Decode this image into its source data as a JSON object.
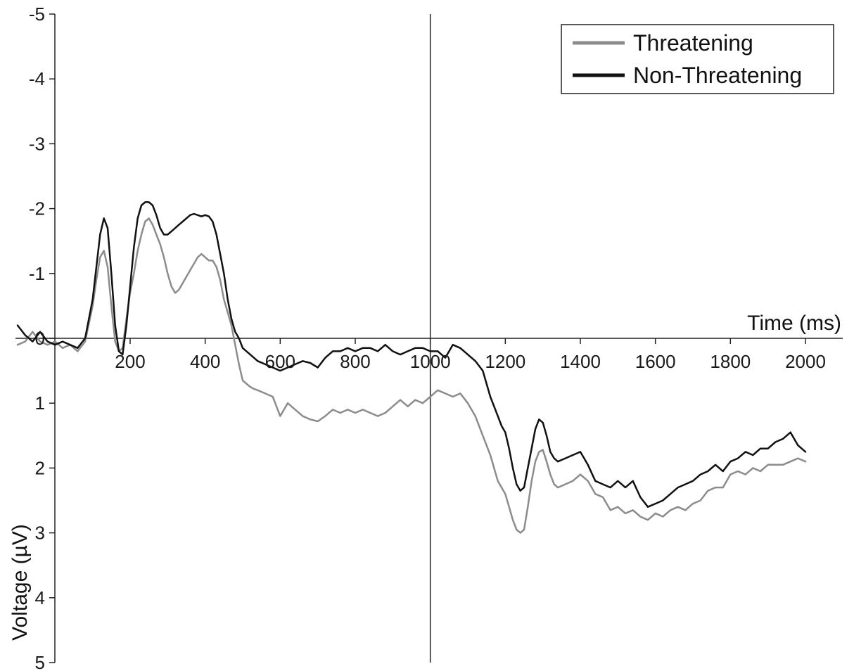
{
  "chart_data": {
    "type": "line",
    "title": "",
    "xlabel": "Time (ms)",
    "ylabel": "Voltage (µV)",
    "xlim": [
      -100,
      2100
    ],
    "ylim": [
      5,
      -5
    ],
    "y_axis_inverted": true,
    "x_ticks": [
      200,
      400,
      600,
      800,
      1000,
      1200,
      1400,
      1600,
      1800,
      2000
    ],
    "y_ticks": [
      -5,
      -4,
      -3,
      -2,
      -1,
      0,
      1,
      2,
      3,
      4,
      5
    ],
    "y_tick_labels": [
      "-5",
      "-4",
      "-3",
      "-2",
      "-1",
      "0",
      "1",
      "2",
      "3",
      "4",
      "5"
    ],
    "x_tick_labels": [
      "200",
      "400",
      "600",
      "800",
      "1000",
      "1200",
      "1400",
      "1600",
      "1800",
      "2000"
    ],
    "reference_line_x": 1000,
    "grid": false,
    "legend_position": "top-right",
    "series": [
      {
        "name": "Threatening",
        "color": "#8c8c8c",
        "x": [
          -100,
          -80,
          -60,
          -40,
          -20,
          0,
          20,
          40,
          60,
          80,
          100,
          110,
          120,
          130,
          140,
          150,
          160,
          170,
          180,
          190,
          200,
          210,
          220,
          230,
          240,
          250,
          260,
          270,
          280,
          290,
          300,
          310,
          320,
          330,
          340,
          350,
          360,
          370,
          380,
          390,
          400,
          410,
          420,
          430,
          440,
          450,
          460,
          470,
          480,
          490,
          500,
          510,
          520,
          530,
          540,
          560,
          580,
          600,
          620,
          640,
          660,
          680,
          700,
          720,
          740,
          760,
          780,
          800,
          820,
          840,
          860,
          880,
          900,
          920,
          940,
          960,
          980,
          1000,
          1020,
          1040,
          1060,
          1080,
          1100,
          1120,
          1140,
          1160,
          1180,
          1190,
          1200,
          1210,
          1220,
          1230,
          1240,
          1250,
          1260,
          1270,
          1280,
          1290,
          1300,
          1310,
          1320,
          1330,
          1340,
          1360,
          1380,
          1400,
          1420,
          1440,
          1460,
          1480,
          1500,
          1520,
          1540,
          1560,
          1580,
          1600,
          1620,
          1640,
          1660,
          1680,
          1700,
          1720,
          1740,
          1760,
          1780,
          1800,
          1820,
          1840,
          1860,
          1880,
          1900,
          1920,
          1940,
          1960,
          1980,
          2000
        ],
        "values": [
          0.1,
          0.05,
          -0.1,
          0.05,
          0.1,
          0.05,
          0.15,
          0.1,
          0.2,
          0.05,
          -0.5,
          -0.9,
          -1.25,
          -1.35,
          -1.1,
          -0.5,
          0.05,
          0.2,
          0.15,
          -0.3,
          -0.7,
          -1.0,
          -1.35,
          -1.6,
          -1.8,
          -1.85,
          -1.75,
          -1.6,
          -1.45,
          -1.25,
          -1.0,
          -0.8,
          -0.7,
          -0.75,
          -0.85,
          -0.95,
          -1.05,
          -1.15,
          -1.25,
          -1.3,
          -1.25,
          -1.2,
          -1.2,
          -1.1,
          -0.9,
          -0.6,
          -0.4,
          -0.2,
          0.1,
          0.4,
          0.65,
          0.7,
          0.75,
          0.78,
          0.8,
          0.85,
          0.9,
          1.2,
          1.0,
          1.1,
          1.2,
          1.25,
          1.28,
          1.2,
          1.1,
          1.15,
          1.1,
          1.15,
          1.1,
          1.15,
          1.2,
          1.15,
          1.05,
          0.95,
          1.05,
          0.95,
          1.0,
          0.9,
          0.8,
          0.85,
          0.9,
          0.85,
          1.0,
          1.2,
          1.5,
          1.8,
          2.2,
          2.3,
          2.4,
          2.6,
          2.8,
          2.95,
          3.0,
          2.95,
          2.6,
          2.2,
          1.9,
          1.75,
          1.72,
          1.9,
          2.1,
          2.25,
          2.3,
          2.25,
          2.2,
          2.1,
          2.2,
          2.4,
          2.45,
          2.65,
          2.6,
          2.7,
          2.65,
          2.75,
          2.8,
          2.7,
          2.75,
          2.65,
          2.6,
          2.65,
          2.55,
          2.5,
          2.35,
          2.3,
          2.3,
          2.1,
          2.05,
          2.1,
          2.0,
          2.05,
          1.95,
          1.95,
          1.95,
          1.9,
          1.85,
          1.9
        ]
      },
      {
        "name": "Non-Threatening",
        "color": "#111111",
        "x": [
          -100,
          -80,
          -60,
          -40,
          -20,
          0,
          20,
          40,
          60,
          80,
          100,
          110,
          120,
          130,
          140,
          150,
          160,
          170,
          180,
          190,
          200,
          210,
          220,
          230,
          240,
          250,
          260,
          270,
          280,
          290,
          300,
          310,
          320,
          330,
          340,
          350,
          360,
          370,
          380,
          390,
          400,
          410,
          420,
          430,
          440,
          450,
          460,
          470,
          480,
          490,
          500,
          510,
          520,
          530,
          540,
          560,
          580,
          600,
          620,
          640,
          660,
          680,
          700,
          720,
          740,
          760,
          780,
          800,
          820,
          840,
          860,
          880,
          900,
          920,
          940,
          960,
          980,
          1000,
          1020,
          1040,
          1060,
          1080,
          1100,
          1120,
          1140,
          1160,
          1180,
          1190,
          1200,
          1210,
          1220,
          1230,
          1240,
          1250,
          1260,
          1270,
          1280,
          1290,
          1300,
          1310,
          1320,
          1330,
          1340,
          1360,
          1380,
          1400,
          1420,
          1440,
          1460,
          1480,
          1500,
          1520,
          1540,
          1560,
          1580,
          1600,
          1620,
          1640,
          1660,
          1680,
          1700,
          1720,
          1740,
          1760,
          1780,
          1800,
          1820,
          1840,
          1860,
          1880,
          1900,
          1920,
          1940,
          1960,
          1980,
          2000
        ],
        "values": [
          -0.2,
          -0.05,
          0.05,
          -0.1,
          0.05,
          0.1,
          0.05,
          0.1,
          0.15,
          0.0,
          -0.6,
          -1.1,
          -1.6,
          -1.85,
          -1.7,
          -1.0,
          -0.2,
          0.2,
          0.25,
          -0.2,
          -0.8,
          -1.4,
          -1.85,
          -2.05,
          -2.1,
          -2.1,
          -2.05,
          -1.9,
          -1.7,
          -1.6,
          -1.6,
          -1.65,
          -1.7,
          -1.75,
          -1.8,
          -1.85,
          -1.9,
          -1.92,
          -1.9,
          -1.88,
          -1.9,
          -1.88,
          -1.8,
          -1.6,
          -1.3,
          -1.0,
          -0.6,
          -0.3,
          -0.1,
          0.0,
          0.15,
          0.2,
          0.25,
          0.3,
          0.35,
          0.4,
          0.45,
          0.5,
          0.45,
          0.4,
          0.35,
          0.38,
          0.45,
          0.3,
          0.2,
          0.2,
          0.15,
          0.2,
          0.15,
          0.15,
          0.2,
          0.1,
          0.2,
          0.25,
          0.2,
          0.15,
          0.15,
          0.2,
          0.2,
          0.3,
          0.1,
          0.15,
          0.25,
          0.35,
          0.5,
          0.9,
          1.2,
          1.35,
          1.45,
          1.7,
          2.0,
          2.25,
          2.35,
          2.3,
          2.0,
          1.7,
          1.4,
          1.25,
          1.3,
          1.5,
          1.75,
          1.85,
          1.9,
          1.85,
          1.8,
          1.75,
          1.95,
          2.2,
          2.25,
          2.3,
          2.2,
          2.3,
          2.2,
          2.45,
          2.6,
          2.55,
          2.5,
          2.4,
          2.3,
          2.25,
          2.2,
          2.1,
          2.05,
          1.95,
          2.05,
          1.9,
          1.85,
          1.75,
          1.8,
          1.7,
          1.7,
          1.6,
          1.55,
          1.45,
          1.65,
          1.75
        ]
      }
    ]
  }
}
